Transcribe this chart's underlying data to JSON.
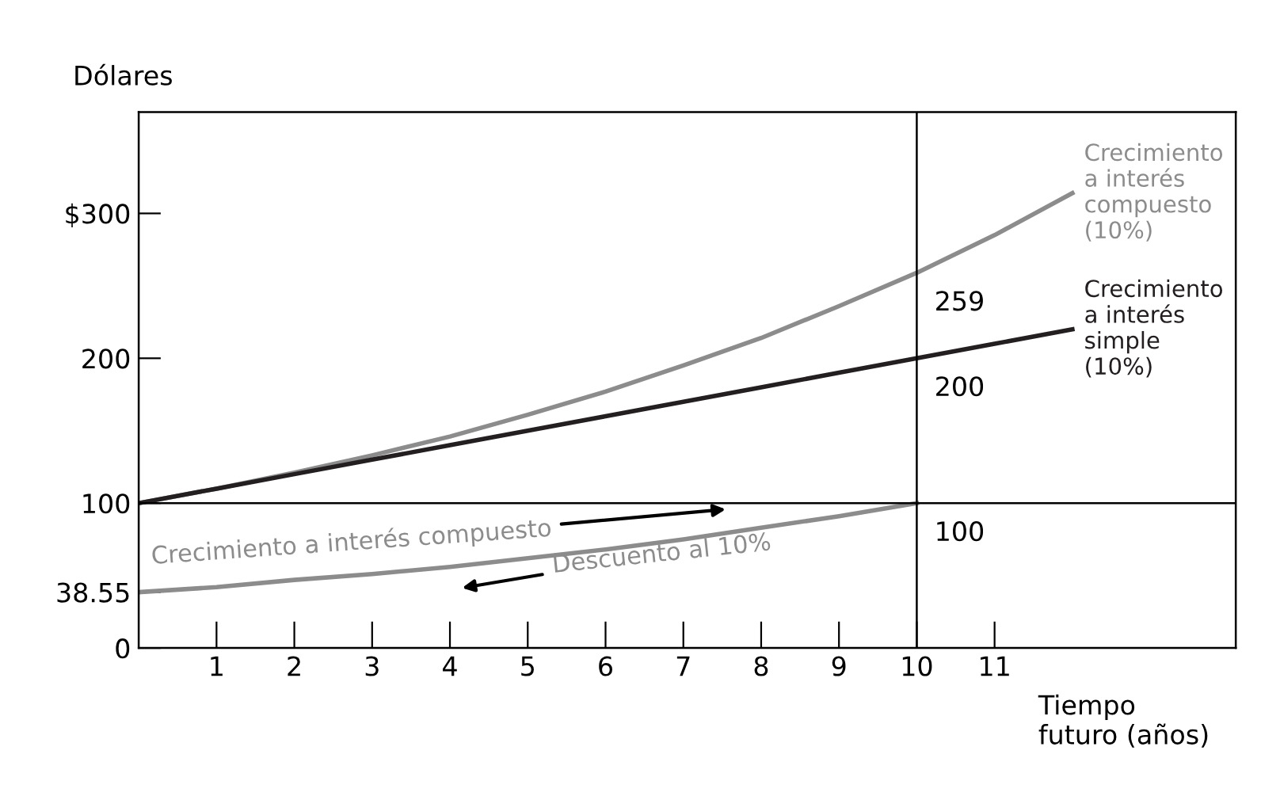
{
  "chart_data": {
    "type": "line",
    "xlabel": "Tiempo\nfuturo (años)",
    "ylabel": "Dólares",
    "x": [
      0,
      1,
      2,
      3,
      4,
      5,
      6,
      7,
      8,
      9,
      10,
      11,
      12
    ],
    "series": [
      {
        "name": "Crecimiento\na interés\ncompuesto\n(10%)",
        "color": "#8c8c8c",
        "values": [
          100,
          110,
          121,
          133,
          146,
          161,
          177,
          195,
          214,
          236,
          259,
          285,
          314
        ],
        "value_labels": [
          null,
          null,
          null,
          null,
          null,
          null,
          null,
          null,
          null,
          null,
          "259",
          null,
          null
        ]
      },
      {
        "name": "Crecimiento\na interés\nsimple\n(10%)",
        "color": "#231f20",
        "values": [
          100,
          110,
          120,
          130,
          140,
          150,
          160,
          170,
          180,
          190,
          200,
          210,
          220
        ],
        "value_labels": [
          null,
          null,
          null,
          null,
          null,
          null,
          null,
          null,
          null,
          null,
          "200",
          null,
          null
        ]
      },
      {
        "color": "#8c8c8c",
        "x": [
          0,
          1,
          2,
          3,
          4,
          5,
          6,
          7,
          8,
          9,
          10
        ],
        "values": [
          38.55,
          42,
          47,
          51,
          56,
          62,
          68,
          75,
          83,
          91,
          100
        ],
        "value_labels": [
          null,
          null,
          null,
          null,
          null,
          null,
          null,
          null,
          null,
          null,
          "100"
        ]
      }
    ],
    "xlim": [
      0,
      14.1
    ],
    "ylim": [
      0,
      370
    ],
    "xticks": [
      1,
      2,
      3,
      4,
      5,
      6,
      7,
      8,
      9,
      10,
      11
    ],
    "yticks": [
      0,
      38.55,
      100,
      200,
      {
        "value": 300,
        "label": "$300"
      }
    ],
    "ref_lines": [
      {
        "axis": "x",
        "value": 10,
        "color": "#000000"
      },
      {
        "axis": "y",
        "value": 100,
        "color": "#000000"
      }
    ],
    "annotations": [
      "Crecimiento a interés compuesto",
      "Descuento al 10%"
    ],
    "grid": false,
    "legend": false,
    "marker": "none",
    "line_style": "solid"
  }
}
